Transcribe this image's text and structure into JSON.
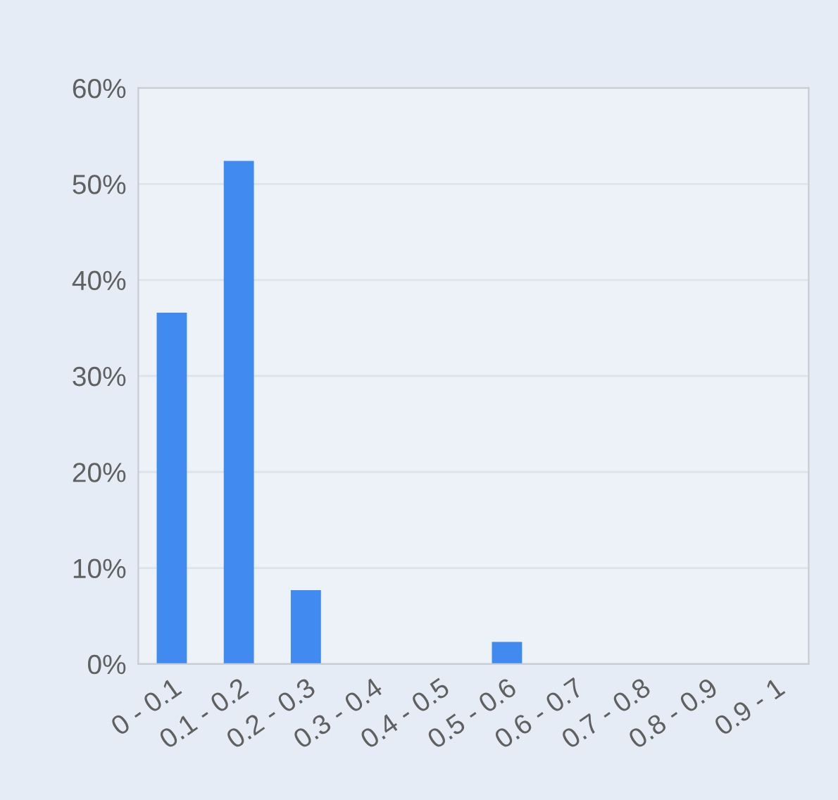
{
  "chart_data": {
    "type": "bar",
    "categories": [
      "0 - 0.1",
      "0.1 - 0.2",
      "0.2 - 0.3",
      "0.3 - 0.4",
      "0.4 - 0.5",
      "0.5 - 0.6",
      "0.6 - 0.7",
      "0.7 - 0.8",
      "0.8 - 0.9",
      "0.9 - 1"
    ],
    "values": [
      36.6,
      52.4,
      7.7,
      0,
      0,
      2.3,
      0,
      0,
      0,
      0
    ],
    "color": "#418bf0",
    "ylim": [
      0,
      60
    ],
    "yticks": [
      {
        "value": 0,
        "label": "0%"
      },
      {
        "value": 10,
        "label": "10%"
      },
      {
        "value": 20,
        "label": "20%"
      },
      {
        "value": 30,
        "label": "30%"
      },
      {
        "value": 40,
        "label": "40%"
      },
      {
        "value": 50,
        "label": "50%"
      },
      {
        "value": 60,
        "label": "60%"
      }
    ],
    "grid": "y",
    "legend": false
  }
}
